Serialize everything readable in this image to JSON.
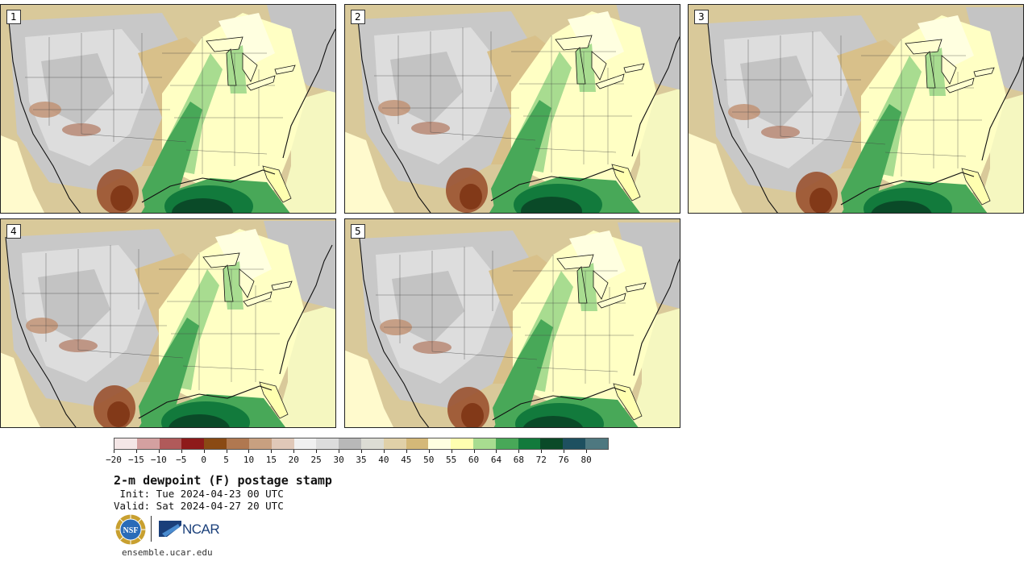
{
  "panels": [
    {
      "label": "1"
    },
    {
      "label": "2"
    },
    {
      "label": "3"
    },
    {
      "label": "4"
    },
    {
      "label": "5"
    }
  ],
  "colorbar": {
    "colors": [
      "#f4e6e6",
      "#d4a0a0",
      "#b05a5a",
      "#8e1a1a",
      "#8a4a14",
      "#b07850",
      "#c8a080",
      "#e0c8b8",
      "#f0f0f0",
      "#dcdcdc",
      "#b8b8b8",
      "#dcdcd4",
      "#e0d0a8",
      "#d4b878",
      "#ffffe0",
      "#ffffb0",
      "#a8dc90",
      "#48a858",
      "#127a3c",
      "#0a4a28",
      "#1e5060",
      "#4e7880"
    ],
    "ticks": [
      "−20",
      "−15",
      "−10",
      "−5",
      "0",
      "5",
      "10",
      "15",
      "20",
      "25",
      "30",
      "35",
      "40",
      "45",
      "50",
      "55",
      "60",
      "64",
      "68",
      "72",
      "76",
      "80"
    ]
  },
  "title": "2-m dewpoint (F) postage stamp",
  "init": " Init: Tue 2024-04-23 00 UTC",
  "valid": "Valid: Sat 2024-04-27 20 UTC",
  "logos": {
    "nsf": "NSF",
    "ncar": "NCAR"
  },
  "footer": "ensemble.ucar.edu"
}
